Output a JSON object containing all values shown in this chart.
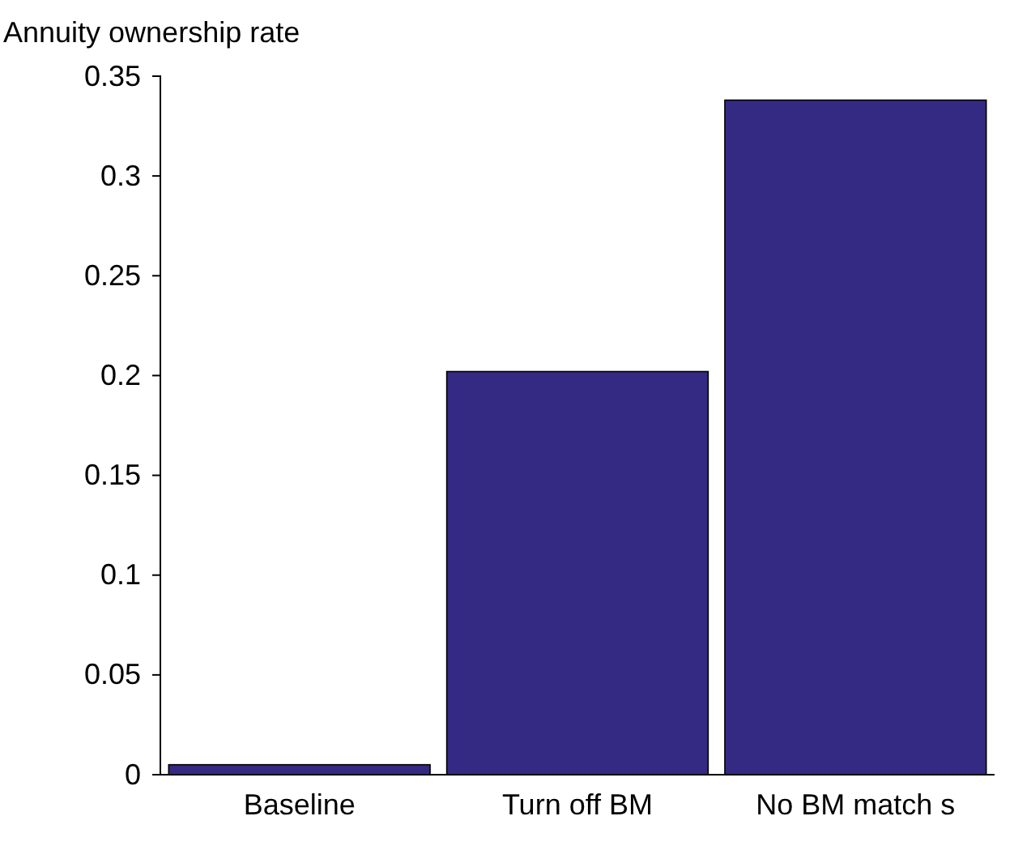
{
  "chart_data": {
    "type": "bar",
    "ylabel": "Annuity ownership rate",
    "categories": [
      "Baseline",
      "Turn off BM",
      "No BM match s"
    ],
    "values": [
      0.005,
      0.202,
      0.338
    ],
    "color": "#342a84",
    "ylim": [
      0,
      0.35
    ],
    "yticks": [
      0,
      0.05,
      0.1,
      0.15,
      0.2,
      0.25,
      0.3,
      0.35
    ],
    "grid": false
  }
}
